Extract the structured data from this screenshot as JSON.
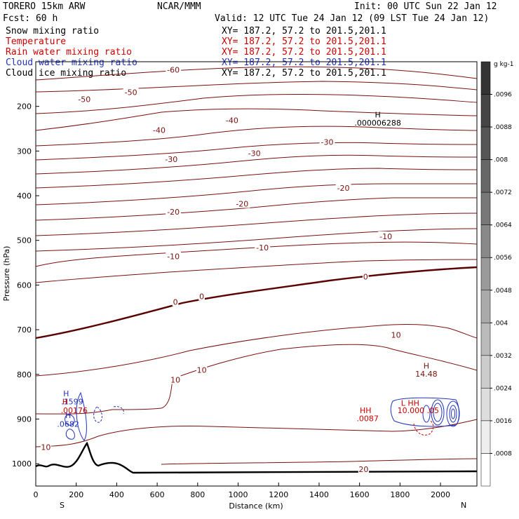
{
  "header": {
    "model": "TORERO  15km ARW",
    "org": "NCAR/MMM",
    "init": "Init: 00 UTC Sun 22 Jan 12",
    "fcst": "Fcst:   60 h",
    "valid": "Valid: 12 UTC Tue 24 Jan 12 (09 LST Tue 24 Jan 12)"
  },
  "legend": [
    {
      "label": "Snow mixing ratio",
      "color": "#000000",
      "xy": "XY= 187.2, 57.2 to 201.5,201.1",
      "xy_color": "#000000"
    },
    {
      "label": "Temperature",
      "color": "#cc0000",
      "xy": "XY= 187.2, 57.2 to 201.5,201.1",
      "xy_color": "#cc0000"
    },
    {
      "label": "Rain water mixing ratio",
      "color": "#cc0000",
      "xy": "XY= 187.2, 57.2 to 201.5,201.1",
      "xy_color": "#cc0000"
    },
    {
      "label": "Cloud water mixing ratio",
      "color": "#2233bb",
      "xy": "XY= 187.2, 57.2 to 201.5,201.1",
      "xy_color": "#2233bb"
    },
    {
      "label": "Cloud ice mixing ratio",
      "color": "#000000",
      "xy": "XY= 187.2, 57.2 to 201.5,201.1",
      "xy_color": "#000000"
    }
  ],
  "chart_data": {
    "type": "cross-section contour",
    "xlabel": "Distance (km)",
    "ylabel": "Pressure (hPa)",
    "x_ticks": [
      0,
      200,
      400,
      600,
      800,
      1000,
      1200,
      1400,
      1600,
      1800,
      2000
    ],
    "xlim": [
      0,
      2180
    ],
    "y_ticks": [
      200,
      300,
      400,
      500,
      600,
      700,
      800,
      900,
      1000
    ],
    "ylim": [
      1050,
      100
    ],
    "left_end_label": "S",
    "right_end_label": "N",
    "colorbar": {
      "unit": "g kg-1",
      "ticks": [
        ".0096",
        ".0088",
        ".008",
        ".0072",
        ".0064",
        ".0056",
        ".0048",
        ".004",
        ".0032",
        ".0024",
        ".0016",
        ".0008"
      ]
    },
    "temperature_contours": [
      {
        "level": -60,
        "labels": [
          {
            "text": "-60",
            "x": 680,
            "p": 118
          }
        ]
      },
      {
        "level": -50,
        "labels": [
          {
            "text": "-50",
            "x": 470,
            "p": 168
          },
          {
            "text": "-50",
            "x": 240,
            "p": 184
          }
        ]
      },
      {
        "level": -40,
        "labels": [
          {
            "text": "-40",
            "x": 970,
            "p": 231
          },
          {
            "text": "-40",
            "x": 610,
            "p": 253
          }
        ]
      },
      {
        "level": -30,
        "labels": [
          {
            "text": "-30",
            "x": 1440,
            "p": 280
          },
          {
            "text": "-30",
            "x": 1080,
            "p": 305
          },
          {
            "text": "-30",
            "x": 670,
            "p": 318
          }
        ]
      },
      {
        "level": -20,
        "labels": [
          {
            "text": "-20",
            "x": 1520,
            "p": 383
          },
          {
            "text": "-20",
            "x": 1020,
            "p": 418
          },
          {
            "text": "-20",
            "x": 680,
            "p": 436
          }
        ]
      },
      {
        "level": -10,
        "labels": [
          {
            "text": "-10",
            "x": 1730,
            "p": 491
          },
          {
            "text": "-10",
            "x": 1120,
            "p": 516
          },
          {
            "text": "-10",
            "x": 680,
            "p": 536
          }
        ]
      },
      {
        "level": 0,
        "labels": [
          {
            "text": "0",
            "x": 1630,
            "p": 581
          },
          {
            "text": "0",
            "x": 820,
            "p": 625
          },
          {
            "text": "0",
            "x": 690,
            "p": 638
          }
        ]
      },
      {
        "level": 10,
        "labels": [
          {
            "text": "10",
            "x": 1780,
            "p": 712
          },
          {
            "text": "10",
            "x": 820,
            "p": 790
          },
          {
            "text": "10",
            "x": 690,
            "p": 812
          },
          {
            "text": "10",
            "x": 50,
            "p": 963
          }
        ]
      },
      {
        "level": 20,
        "labels": [
          {
            "text": "20",
            "x": 1620,
            "p": 1012
          }
        ]
      }
    ],
    "annotations": [
      {
        "text": "H",
        "x": 1690,
        "p": 225,
        "color": "#000000"
      },
      {
        "text": ".000006288",
        "x": 1690,
        "p": 243,
        "color": "#000000"
      },
      {
        "text": "H",
        "x": 1930,
        "p": 787,
        "color": "#7a0f0f"
      },
      {
        "text": "14.48",
        "x": 1930,
        "p": 805,
        "color": "#7a0f0f"
      },
      {
        "text": "H",
        "x": 160,
        "p": 898,
        "color": "#2233bb"
      },
      {
        "text": ".0682",
        "x": 160,
        "p": 917,
        "color": "#2233bb"
      },
      {
        "text": "H",
        "x": 150,
        "p": 849,
        "color": "#2233bb"
      },
      {
        "text": ".1599",
        "x": 180,
        "p": 867,
        "color": "#2233bb"
      },
      {
        "text": "H",
        "x": 145,
        "p": 867,
        "color": "#cc0000"
      },
      {
        "text": ".00176",
        "x": 190,
        "p": 887,
        "color": "#cc0000"
      },
      {
        "text": "HH",
        "x": 1630,
        "p": 887,
        "color": "#cc0000"
      },
      {
        "text": ".0087",
        "x": 1640,
        "p": 905,
        "color": "#cc0000"
      },
      {
        "text": "L HH",
        "x": 1850,
        "p": 870,
        "color": "#cc0000"
      },
      {
        "text": "10.000 .05",
        "x": 1890,
        "p": 887,
        "color": "#cc0000"
      }
    ]
  }
}
